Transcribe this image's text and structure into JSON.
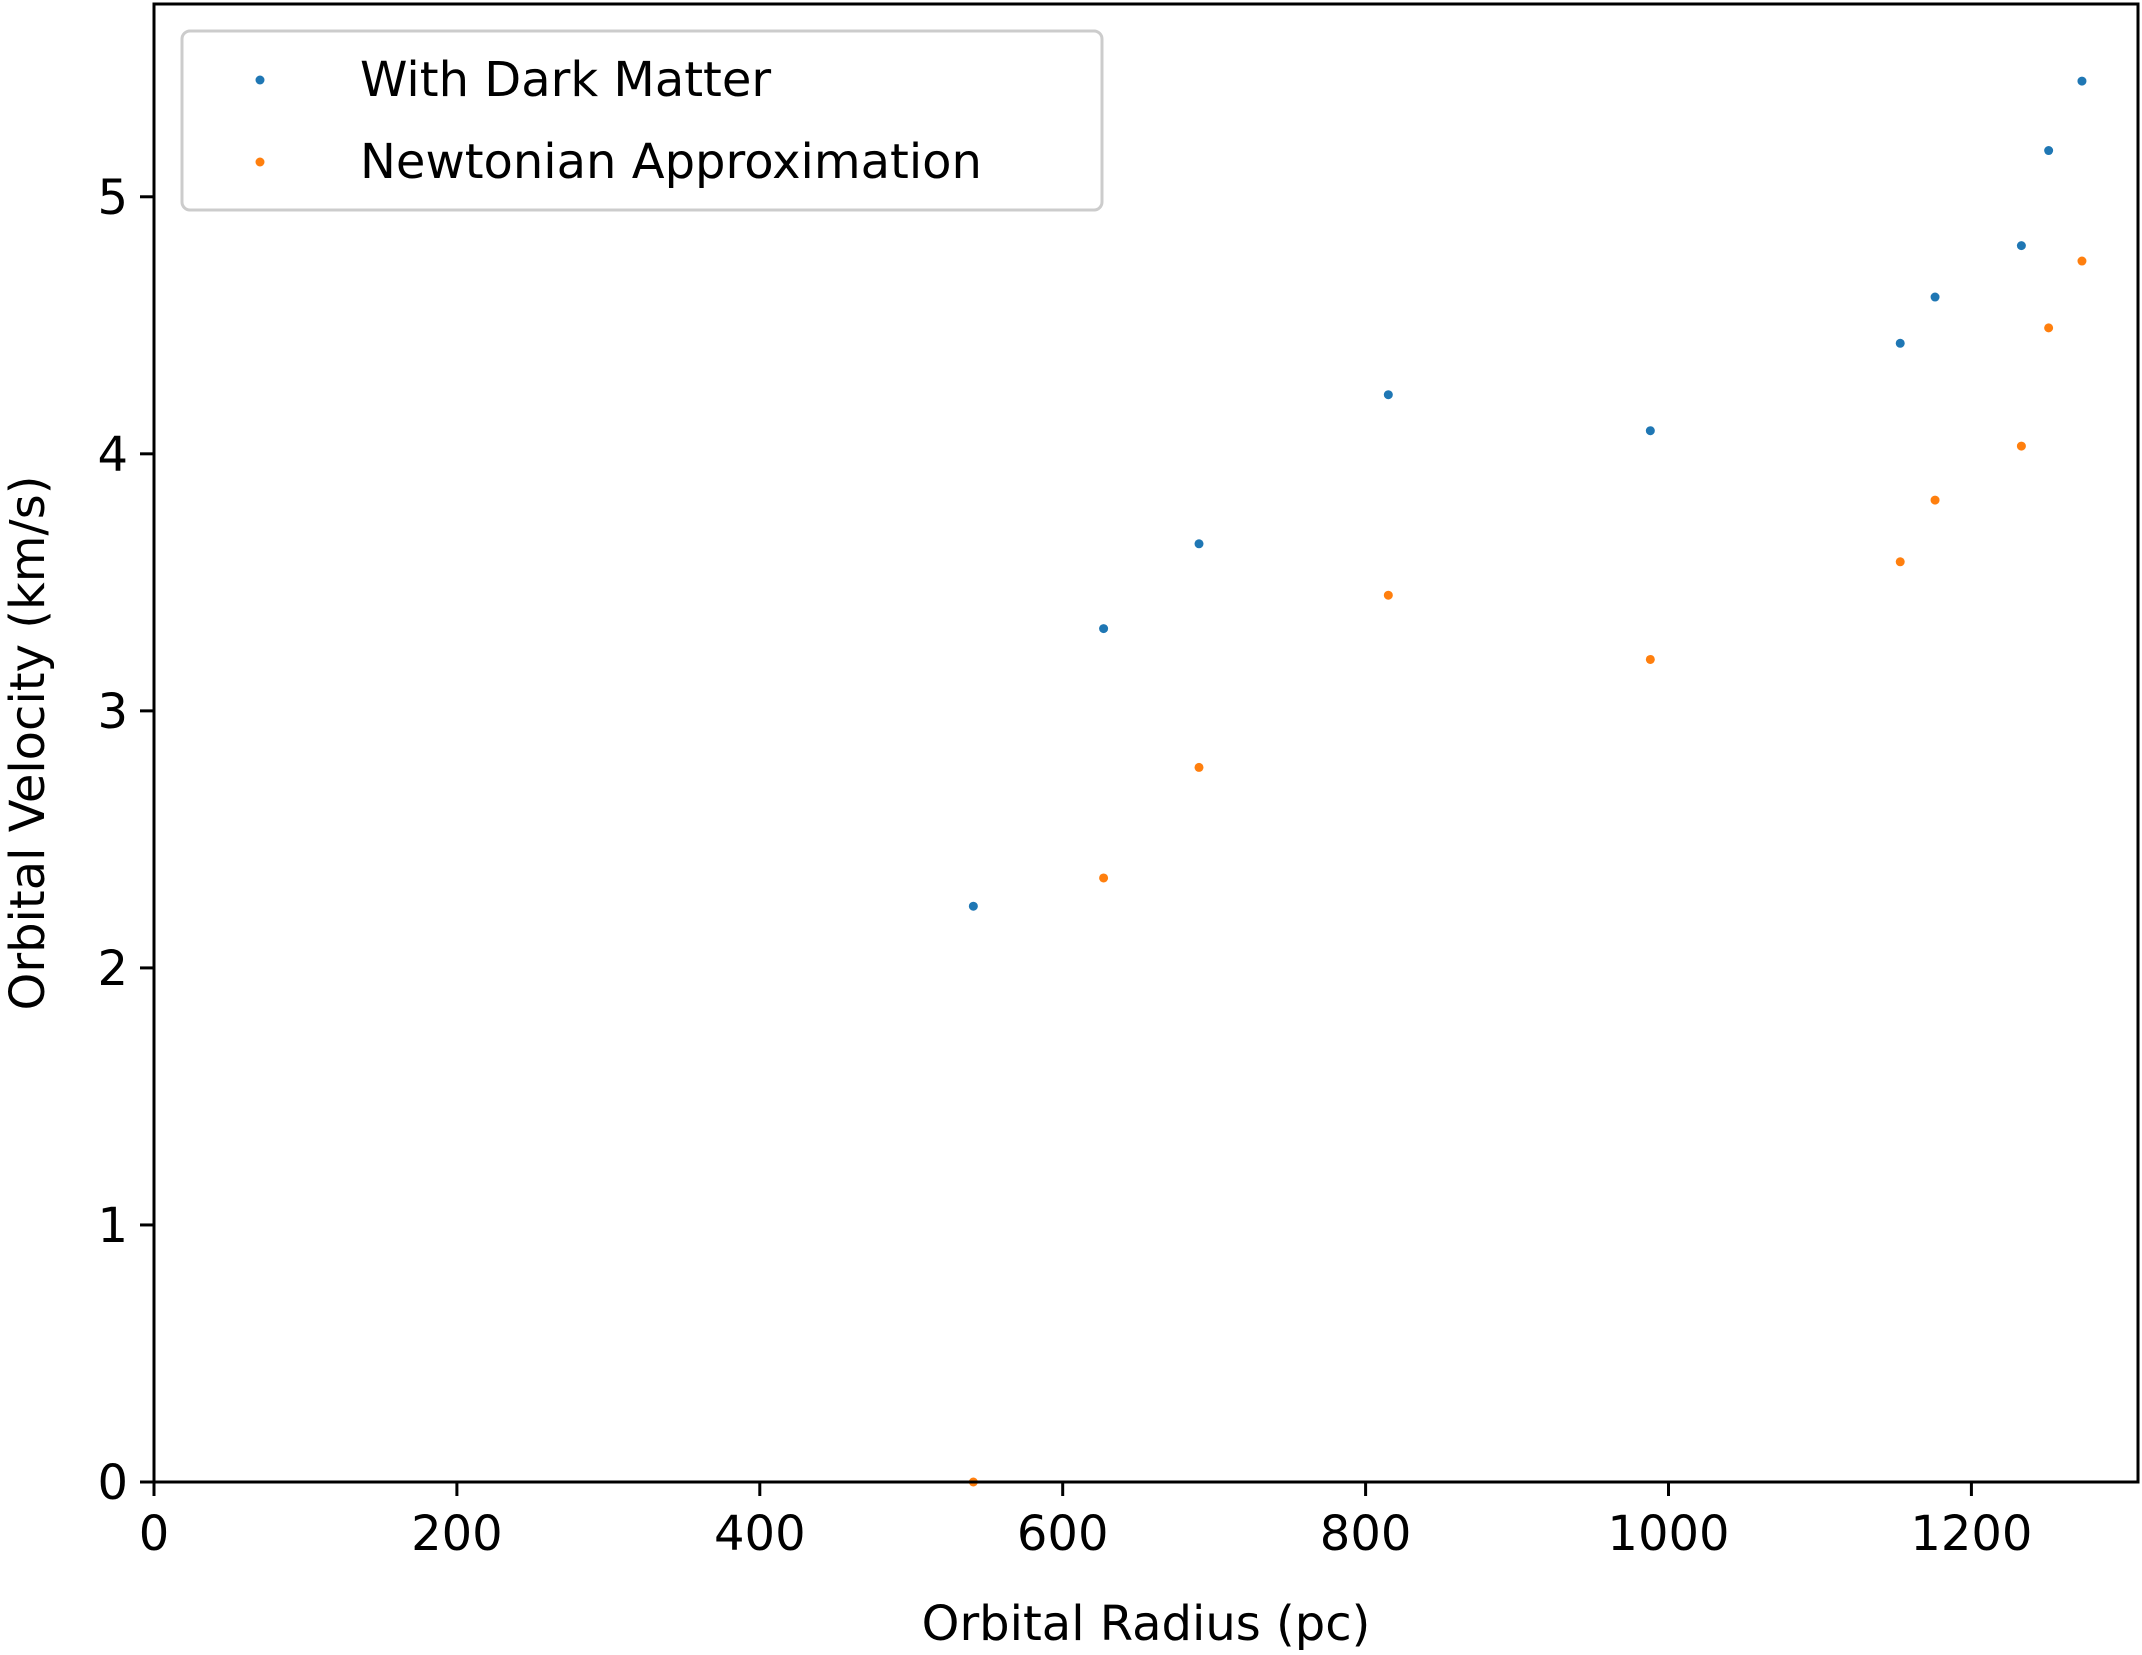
{
  "chart_data": {
    "type": "scatter",
    "title": "",
    "xlabel": "Orbital Radius (pc)",
    "ylabel": "Orbital Velocity (km/s)",
    "xlim": [
      0,
      1310
    ],
    "ylim": [
      0,
      5.75
    ],
    "xticks": [
      0,
      200,
      400,
      600,
      800,
      1000,
      1200
    ],
    "xtick_labels": [
      "0",
      "200",
      "400",
      "600",
      "800",
      "1000",
      "1200"
    ],
    "yticks": [
      0,
      1,
      2,
      3,
      4,
      5
    ],
    "ytick_labels": [
      "0",
      "1",
      "2",
      "3",
      "4",
      "5"
    ],
    "grid": false,
    "legend_position": "top-left",
    "series": [
      {
        "name": "With Dark Matter",
        "color": "#1f77b4",
        "x": [
          541,
          627,
          690,
          815,
          988,
          1153,
          1176,
          1233,
          1251,
          1273
        ],
        "y": [
          2.24,
          3.32,
          3.65,
          4.23,
          4.09,
          4.43,
          4.61,
          4.81,
          5.18,
          5.45
        ]
      },
      {
        "name": "Newtonian Approximation",
        "color": "#ff7f0e",
        "x": [
          541,
          627,
          690,
          815,
          988,
          1153,
          1176,
          1233,
          1251,
          1273
        ],
        "y": [
          0.0,
          2.35,
          2.78,
          3.45,
          3.2,
          3.58,
          3.82,
          4.03,
          4.49,
          4.75
        ]
      }
    ]
  }
}
